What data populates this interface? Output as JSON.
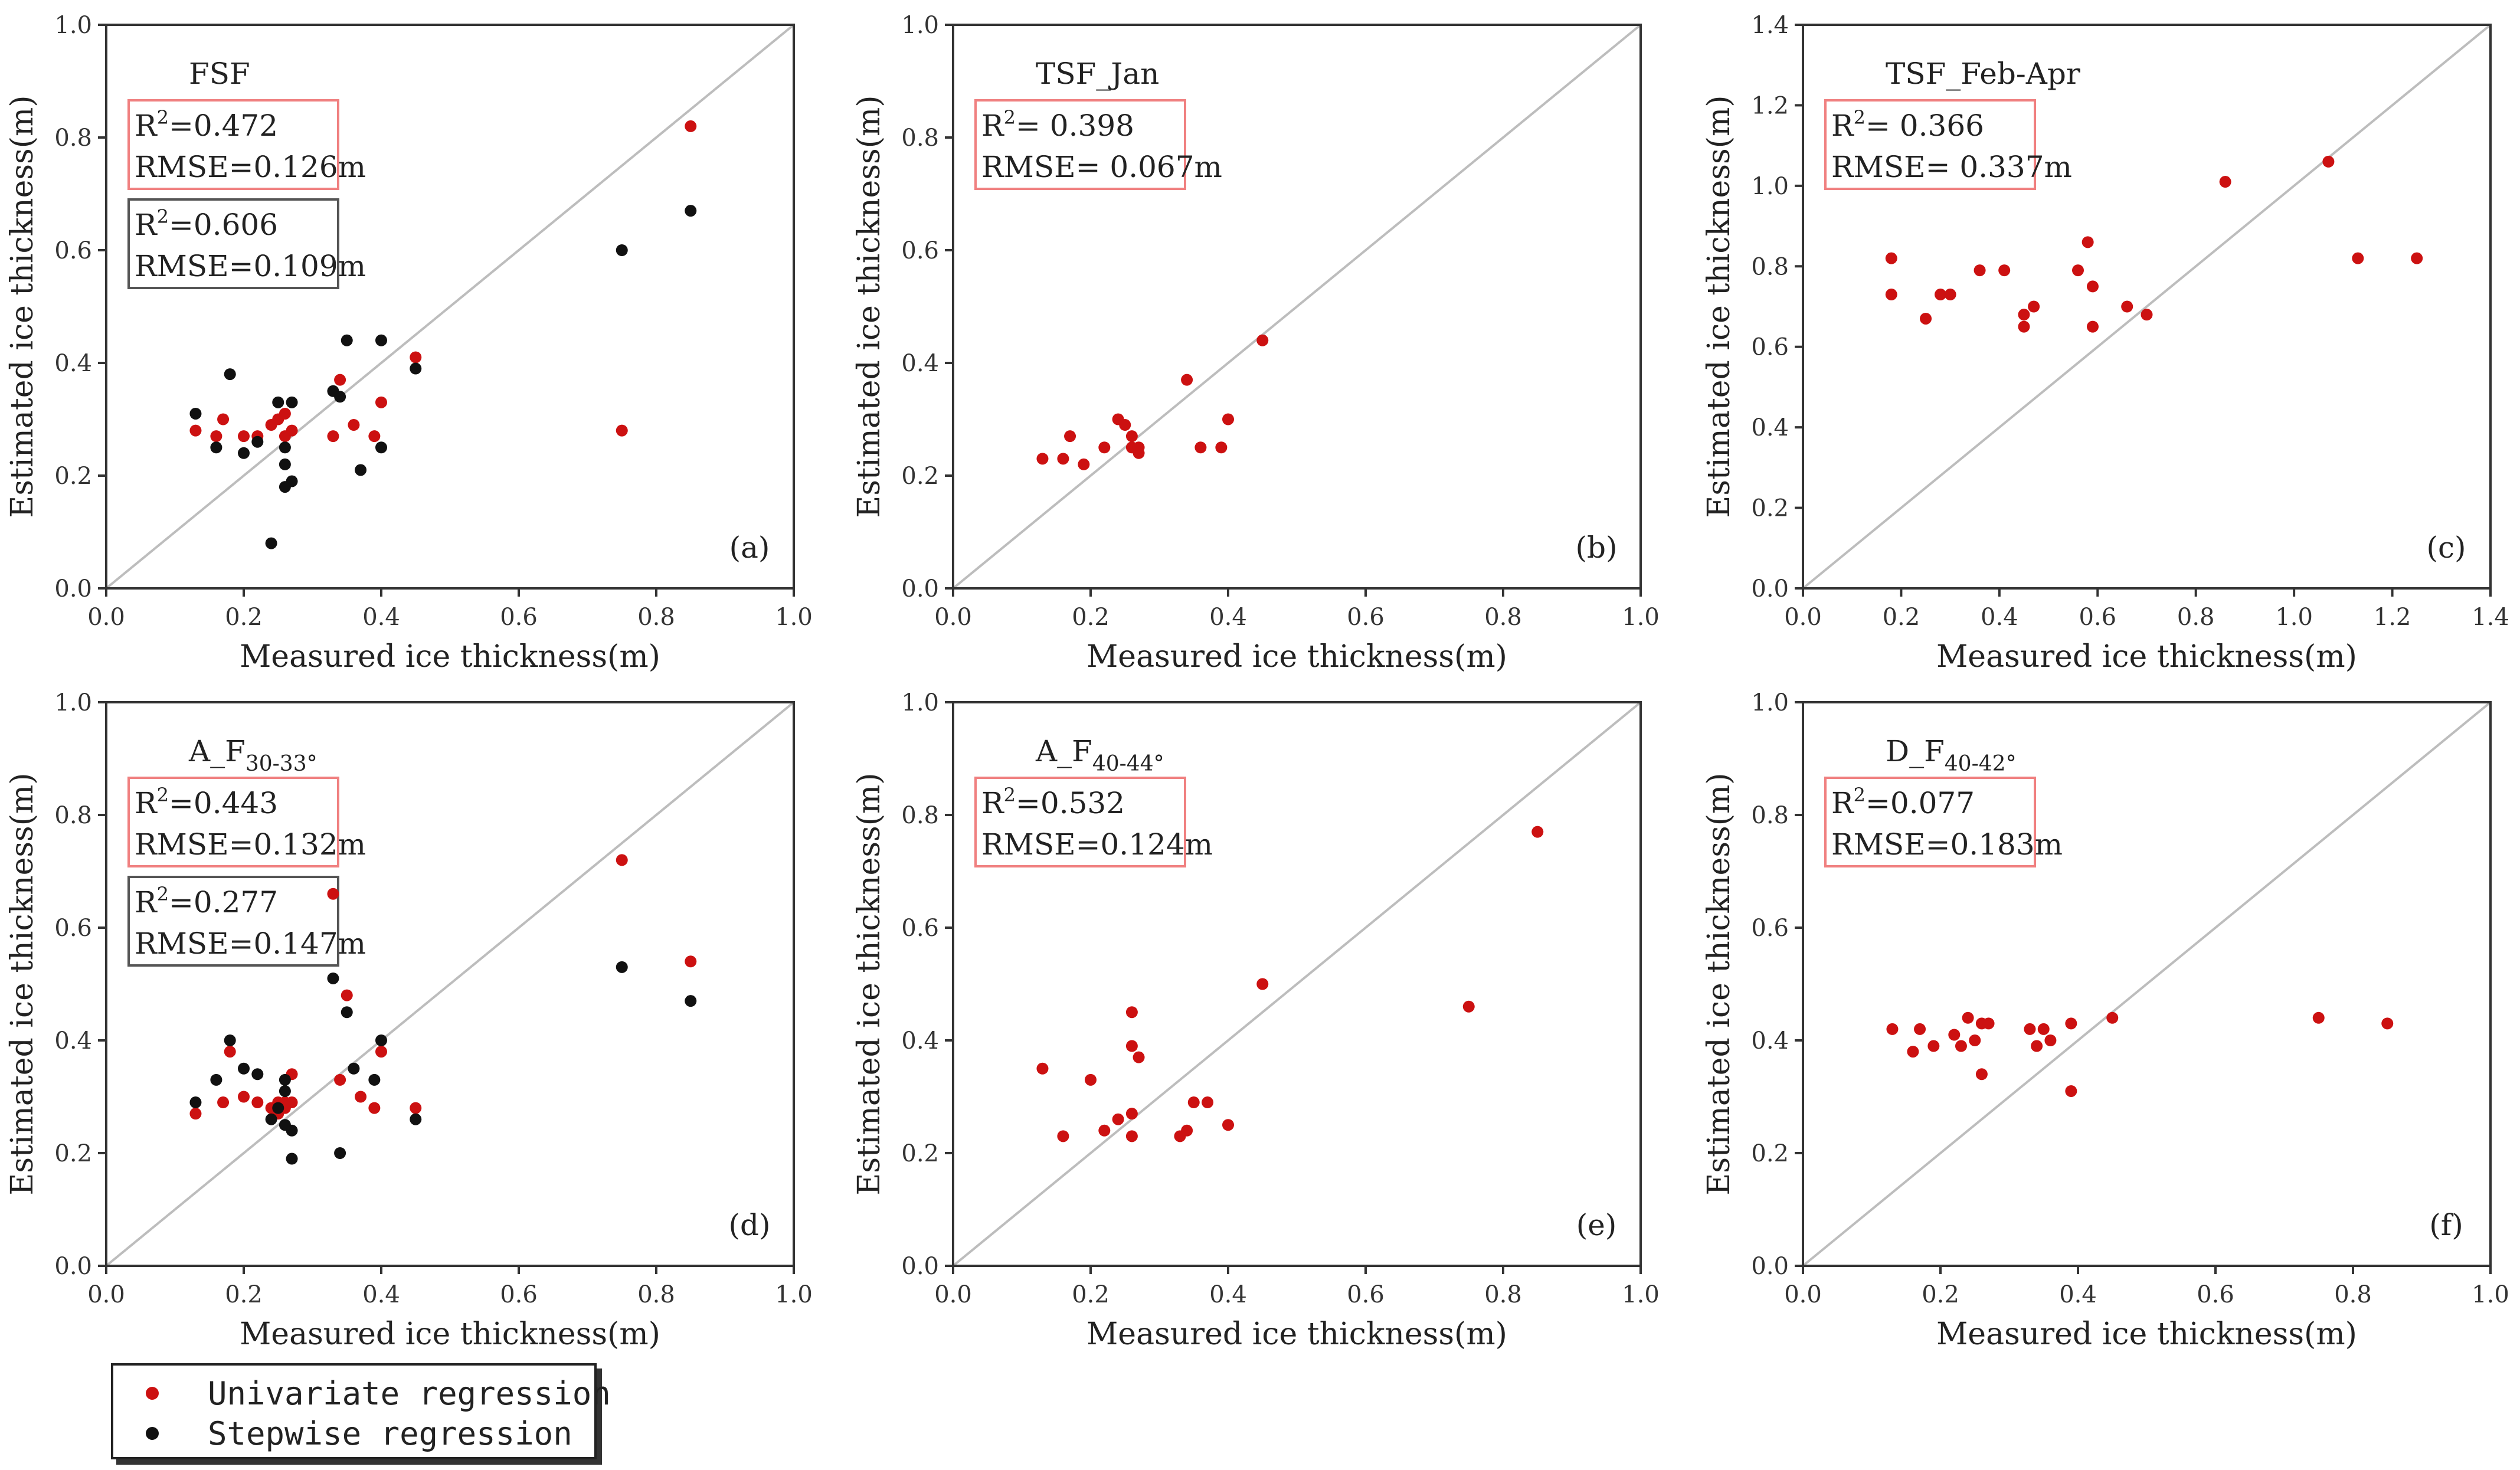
{
  "colors": {
    "univariate": "#cc1111",
    "stepwise": "#111111",
    "stats_box_red": "#f08080",
    "stats_box_gray": "#555555",
    "diagonal": "#bdbdbd"
  },
  "legend": [
    {
      "label": "Univariate regression",
      "color": "#cc1111"
    },
    {
      "label": "Stepwise regression",
      "color": "#111111"
    }
  ],
  "chart_data": [
    {
      "type": "scatter",
      "panel_label": "(a)",
      "title": "FSF",
      "xlabel": "Measured ice thickness(m)",
      "ylabel": "Estimated ice thickness(m)",
      "xlim": [
        0,
        1.0
      ],
      "ylim": [
        0,
        1.0
      ],
      "xticks": [
        0,
        0.2,
        0.4,
        0.6,
        0.8,
        1.0
      ],
      "yticks": [
        0,
        0.2,
        0.4,
        0.6,
        0.8,
        1.0
      ],
      "xtick_labels": [
        "0.0",
        "0.2",
        "0.4",
        "0.6",
        "0.8",
        "1.0"
      ],
      "ytick_labels": [
        "0.0",
        "0.2",
        "0.4",
        "0.6",
        "0.8",
        "1.0"
      ],
      "stats": [
        {
          "series": "Univariate regression",
          "r2_label": "R",
          "r2_value": "=0.472",
          "rmse": "RMSE=0.126m"
        },
        {
          "series": "Stepwise regression",
          "r2_label": "R",
          "r2_value": "=0.606",
          "rmse": "RMSE=0.109m"
        }
      ],
      "series": [
        {
          "name": "Univariate regression",
          "color": "#cc1111",
          "points": [
            [
              0.13,
              0.28
            ],
            [
              0.16,
              0.27
            ],
            [
              0.17,
              0.3
            ],
            [
              0.2,
              0.27
            ],
            [
              0.22,
              0.27
            ],
            [
              0.24,
              0.29
            ],
            [
              0.25,
              0.3
            ],
            [
              0.26,
              0.27
            ],
            [
              0.27,
              0.28
            ],
            [
              0.26,
              0.31
            ],
            [
              0.33,
              0.27
            ],
            [
              0.34,
              0.37
            ],
            [
              0.36,
              0.29
            ],
            [
              0.39,
              0.27
            ],
            [
              0.4,
              0.33
            ],
            [
              0.45,
              0.41
            ],
            [
              0.75,
              0.28
            ],
            [
              0.85,
              0.82
            ]
          ]
        },
        {
          "name": "Stepwise regression",
          "color": "#111111",
          "points": [
            [
              0.13,
              0.31
            ],
            [
              0.16,
              0.25
            ],
            [
              0.18,
              0.38
            ],
            [
              0.2,
              0.24
            ],
            [
              0.22,
              0.26
            ],
            [
              0.24,
              0.08
            ],
            [
              0.25,
              0.33
            ],
            [
              0.26,
              0.18
            ],
            [
              0.26,
              0.25
            ],
            [
              0.26,
              0.22
            ],
            [
              0.27,
              0.19
            ],
            [
              0.27,
              0.33
            ],
            [
              0.33,
              0.35
            ],
            [
              0.34,
              0.34
            ],
            [
              0.35,
              0.44
            ],
            [
              0.37,
              0.21
            ],
            [
              0.4,
              0.25
            ],
            [
              0.4,
              0.44
            ],
            [
              0.45,
              0.39
            ],
            [
              0.75,
              0.6
            ],
            [
              0.85,
              0.67
            ]
          ]
        }
      ]
    },
    {
      "type": "scatter",
      "panel_label": "(b)",
      "title": "TSF_Jan",
      "xlabel": "Measured ice thickness(m)",
      "ylabel": "Estimated ice thickness(m)",
      "xlim": [
        0,
        1.0
      ],
      "ylim": [
        0,
        1.0
      ],
      "xticks": [
        0,
        0.2,
        0.4,
        0.6,
        0.8,
        1.0
      ],
      "yticks": [
        0,
        0.2,
        0.4,
        0.6,
        0.8,
        1.0
      ],
      "xtick_labels": [
        "0.0",
        "0.2",
        "0.4",
        "0.6",
        "0.8",
        "1.0"
      ],
      "ytick_labels": [
        "0.0",
        "0.2",
        "0.4",
        "0.6",
        "0.8",
        "1.0"
      ],
      "stats": [
        {
          "series": "Univariate regression",
          "r2_label": "R",
          "r2_value": "= 0.398",
          "rmse": "RMSE= 0.067m"
        }
      ],
      "series": [
        {
          "name": "Univariate regression",
          "color": "#cc1111",
          "points": [
            [
              0.13,
              0.23
            ],
            [
              0.16,
              0.23
            ],
            [
              0.17,
              0.27
            ],
            [
              0.19,
              0.22
            ],
            [
              0.22,
              0.25
            ],
            [
              0.24,
              0.3
            ],
            [
              0.25,
              0.29
            ],
            [
              0.26,
              0.27
            ],
            [
              0.26,
              0.25
            ],
            [
              0.27,
              0.24
            ],
            [
              0.27,
              0.25
            ],
            [
              0.34,
              0.37
            ],
            [
              0.36,
              0.25
            ],
            [
              0.39,
              0.25
            ],
            [
              0.4,
              0.3
            ],
            [
              0.45,
              0.44
            ]
          ]
        }
      ]
    },
    {
      "type": "scatter",
      "panel_label": "(c)",
      "title": "TSF_Feb-Apr",
      "xlabel": "Measured ice thickness(m)",
      "ylabel": "Estimated ice thickness(m)",
      "xlim": [
        0,
        1.4
      ],
      "ylim": [
        0,
        1.4
      ],
      "xticks": [
        0,
        0.2,
        0.4,
        0.6,
        0.8,
        1.0,
        1.2,
        1.4
      ],
      "yticks": [
        0,
        0.2,
        0.4,
        0.6,
        0.8,
        1.0,
        1.2,
        1.4
      ],
      "xtick_labels": [
        "0.0",
        "0.2",
        "0.4",
        "0.6",
        "0.8",
        "1.0",
        "1.2",
        "1.4"
      ],
      "ytick_labels": [
        "0.0",
        "0.2",
        "0.4",
        "0.6",
        "0.8",
        "1.0",
        "1.2",
        "1.4"
      ],
      "stats": [
        {
          "series": "Univariate regression",
          "r2_label": "R",
          "r2_value": "= 0.366",
          "rmse": "RMSE= 0.337m"
        }
      ],
      "series": [
        {
          "name": "Univariate regression",
          "color": "#cc1111",
          "points": [
            [
              0.18,
              0.82
            ],
            [
              0.18,
              0.73
            ],
            [
              0.25,
              0.67
            ],
            [
              0.28,
              0.73
            ],
            [
              0.3,
              0.73
            ],
            [
              0.36,
              0.79
            ],
            [
              0.41,
              0.79
            ],
            [
              0.45,
              0.68
            ],
            [
              0.45,
              0.65
            ],
            [
              0.47,
              0.7
            ],
            [
              0.56,
              0.79
            ],
            [
              0.58,
              0.86
            ],
            [
              0.59,
              0.75
            ],
            [
              0.59,
              0.65
            ],
            [
              0.66,
              0.7
            ],
            [
              0.7,
              0.68
            ],
            [
              0.86,
              1.01
            ],
            [
              1.07,
              1.06
            ],
            [
              1.13,
              0.82
            ],
            [
              1.25,
              0.82
            ]
          ]
        }
      ]
    },
    {
      "type": "scatter",
      "panel_label": "(d)",
      "title": "A_F",
      "title_sub": "30-33°",
      "xlabel": "Measured ice thickness(m)",
      "ylabel": "Estimated ice thickness(m)",
      "xlim": [
        0,
        1.0
      ],
      "ylim": [
        0,
        1.0
      ],
      "xticks": [
        0,
        0.2,
        0.4,
        0.6,
        0.8,
        1.0
      ],
      "yticks": [
        0,
        0.2,
        0.4,
        0.6,
        0.8,
        1.0
      ],
      "xtick_labels": [
        "0.0",
        "0.2",
        "0.4",
        "0.6",
        "0.8",
        "1.0"
      ],
      "ytick_labels": [
        "0.0",
        "0.2",
        "0.4",
        "0.6",
        "0.8",
        "1.0"
      ],
      "stats": [
        {
          "series": "Univariate regression",
          "r2_label": "R",
          "r2_value": "=0.443",
          "rmse": "RMSE=0.132m"
        },
        {
          "series": "Stepwise regression",
          "r2_label": "R",
          "r2_value": "=0.277",
          "rmse": "RMSE=0.147m"
        }
      ],
      "series": [
        {
          "name": "Univariate regression",
          "color": "#cc1111",
          "points": [
            [
              0.13,
              0.27
            ],
            [
              0.17,
              0.29
            ],
            [
              0.18,
              0.38
            ],
            [
              0.2,
              0.3
            ],
            [
              0.22,
              0.29
            ],
            [
              0.24,
              0.28
            ],
            [
              0.25,
              0.29
            ],
            [
              0.25,
              0.27
            ],
            [
              0.26,
              0.28
            ],
            [
              0.26,
              0.29
            ],
            [
              0.27,
              0.29
            ],
            [
              0.27,
              0.34
            ],
            [
              0.33,
              0.66
            ],
            [
              0.34,
              0.33
            ],
            [
              0.35,
              0.48
            ],
            [
              0.37,
              0.3
            ],
            [
              0.39,
              0.28
            ],
            [
              0.4,
              0.38
            ],
            [
              0.45,
              0.28
            ],
            [
              0.75,
              0.72
            ],
            [
              0.85,
              0.54
            ]
          ]
        },
        {
          "name": "Stepwise regression",
          "color": "#111111",
          "points": [
            [
              0.13,
              0.29
            ],
            [
              0.16,
              0.33
            ],
            [
              0.18,
              0.4
            ],
            [
              0.2,
              0.35
            ],
            [
              0.22,
              0.34
            ],
            [
              0.24,
              0.26
            ],
            [
              0.25,
              0.28
            ],
            [
              0.26,
              0.33
            ],
            [
              0.26,
              0.31
            ],
            [
              0.26,
              0.25
            ],
            [
              0.27,
              0.24
            ],
            [
              0.27,
              0.19
            ],
            [
              0.33,
              0.51
            ],
            [
              0.34,
              0.2
            ],
            [
              0.35,
              0.45
            ],
            [
              0.36,
              0.35
            ],
            [
              0.39,
              0.33
            ],
            [
              0.4,
              0.4
            ],
            [
              0.45,
              0.26
            ],
            [
              0.75,
              0.53
            ],
            [
              0.85,
              0.47
            ]
          ]
        }
      ]
    },
    {
      "type": "scatter",
      "panel_label": "(e)",
      "title": "A_F",
      "title_sub": "40-44°",
      "xlabel": "Measured ice thickness(m)",
      "ylabel": "Estimated ice thickness(m)",
      "xlim": [
        0,
        1.0
      ],
      "ylim": [
        0,
        1.0
      ],
      "xticks": [
        0,
        0.2,
        0.4,
        0.6,
        0.8,
        1.0
      ],
      "yticks": [
        0,
        0.2,
        0.4,
        0.6,
        0.8,
        1.0
      ],
      "xtick_labels": [
        "0.0",
        "0.2",
        "0.4",
        "0.6",
        "0.8",
        "1.0"
      ],
      "ytick_labels": [
        "0.0",
        "0.2",
        "0.4",
        "0.6",
        "0.8",
        "1.0"
      ],
      "stats": [
        {
          "series": "Univariate regression",
          "r2_label": "R",
          "r2_value": "=0.532",
          "rmse": "RMSE=0.124m"
        }
      ],
      "series": [
        {
          "name": "Univariate regression",
          "color": "#cc1111",
          "points": [
            [
              0.13,
              0.35
            ],
            [
              0.16,
              0.23
            ],
            [
              0.2,
              0.33
            ],
            [
              0.22,
              0.24
            ],
            [
              0.24,
              0.26
            ],
            [
              0.26,
              0.39
            ],
            [
              0.26,
              0.45
            ],
            [
              0.26,
              0.27
            ],
            [
              0.26,
              0.23
            ],
            [
              0.27,
              0.37
            ],
            [
              0.33,
              0.23
            ],
            [
              0.34,
              0.24
            ],
            [
              0.35,
              0.29
            ],
            [
              0.37,
              0.29
            ],
            [
              0.4,
              0.25
            ],
            [
              0.45,
              0.5
            ],
            [
              0.75,
              0.46
            ],
            [
              0.85,
              0.77
            ]
          ]
        }
      ]
    },
    {
      "type": "scatter",
      "panel_label": "(f)",
      "title": "D_F",
      "title_sub": "40-42°",
      "xlabel": "Measured ice thickness(m)",
      "ylabel": "Estimated ice thickness(m)",
      "xlim": [
        0,
        1.0
      ],
      "ylim": [
        0,
        1.0
      ],
      "xticks": [
        0,
        0.2,
        0.4,
        0.6,
        0.8,
        1.0
      ],
      "yticks": [
        0,
        0.2,
        0.4,
        0.6,
        0.8,
        1.0
      ],
      "xtick_labels": [
        "0.0",
        "0.2",
        "0.4",
        "0.6",
        "0.8",
        "1.0"
      ],
      "ytick_labels": [
        "0.0",
        "0.2",
        "0.4",
        "0.6",
        "0.8",
        "1.0"
      ],
      "stats": [
        {
          "series": "Univariate regression",
          "r2_label": "R",
          "r2_value": "=0.077",
          "rmse": "RMSE=0.183m"
        }
      ],
      "series": [
        {
          "name": "Univariate regression",
          "color": "#cc1111",
          "points": [
            [
              0.13,
              0.42
            ],
            [
              0.16,
              0.38
            ],
            [
              0.17,
              0.42
            ],
            [
              0.19,
              0.39
            ],
            [
              0.22,
              0.41
            ],
            [
              0.23,
              0.39
            ],
            [
              0.24,
              0.44
            ],
            [
              0.25,
              0.4
            ],
            [
              0.26,
              0.34
            ],
            [
              0.26,
              0.43
            ],
            [
              0.27,
              0.43
            ],
            [
              0.33,
              0.42
            ],
            [
              0.34,
              0.39
            ],
            [
              0.35,
              0.42
            ],
            [
              0.36,
              0.4
            ],
            [
              0.39,
              0.43
            ],
            [
              0.39,
              0.31
            ],
            [
              0.45,
              0.44
            ],
            [
              0.75,
              0.44
            ],
            [
              0.85,
              0.43
            ]
          ]
        }
      ]
    }
  ]
}
